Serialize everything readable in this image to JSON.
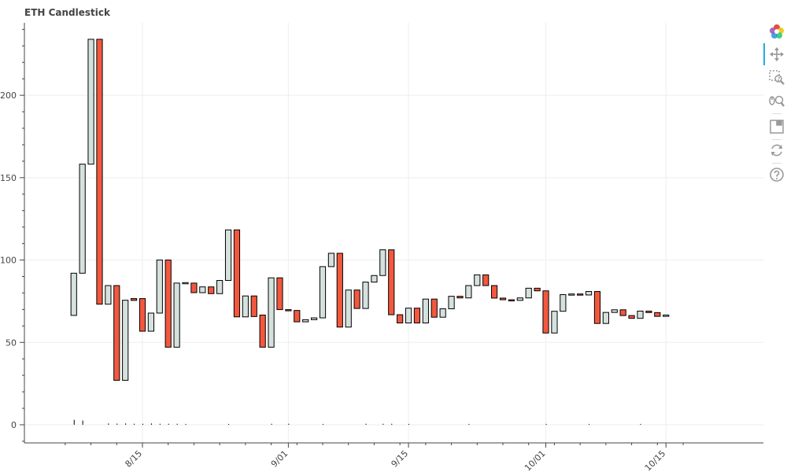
{
  "chart_title": "ETH Candlestick",
  "toolbar": {
    "tools": [
      "bokeh-logo-icon",
      "pan-icon",
      "box-zoom-icon",
      "wheel-zoom-icon",
      "save-icon",
      "reset-icon",
      "help-icon"
    ]
  },
  "colors": {
    "up": "#D5E1DD",
    "down": "#F2583E",
    "outline": "#000000",
    "grid": "#eeeeee"
  },
  "chart_data": {
    "type": "candlestick",
    "title": "ETH Candlestick",
    "x_ticks": [
      "8/15",
      "9/01",
      "9/15",
      "10/01",
      "10/15"
    ],
    "y_ticks": [
      0,
      50,
      100,
      150,
      200
    ],
    "ylim": [
      -11,
      244
    ],
    "grid": true,
    "candles": [
      {
        "date": "2015-08-07",
        "open": 66.4,
        "close": 92.0,
        "dir": "up"
      },
      {
        "date": "2015-08-08",
        "open": 92.0,
        "close": 158.2,
        "dir": "up"
      },
      {
        "date": "2015-08-09",
        "open": 158.2,
        "close": 234.0,
        "dir": "up"
      },
      {
        "date": "2015-08-10",
        "open": 234.0,
        "close": 73.2,
        "dir": "down"
      },
      {
        "date": "2015-08-11",
        "open": 73.2,
        "close": 84.5,
        "dir": "up"
      },
      {
        "date": "2015-08-12",
        "open": 84.5,
        "close": 27.0,
        "dir": "down"
      },
      {
        "date": "2015-08-13",
        "open": 27.0,
        "close": 75.6,
        "dir": "up"
      },
      {
        "date": "2015-08-14",
        "open": 76.6,
        "close": 75.5,
        "dir": "down"
      },
      {
        "date": "2015-08-15",
        "open": 76.6,
        "close": 56.8,
        "dir": "down"
      },
      {
        "date": "2015-08-16",
        "open": 56.8,
        "close": 67.8,
        "dir": "up"
      },
      {
        "date": "2015-08-17",
        "open": 67.8,
        "close": 100.0,
        "dir": "up"
      },
      {
        "date": "2015-08-18",
        "open": 100.0,
        "close": 47.1,
        "dir": "down"
      },
      {
        "date": "2015-08-19",
        "open": 47.1,
        "close": 86.0,
        "dir": "up"
      },
      {
        "date": "2015-08-20",
        "open": 86.0,
        "close": 86.3,
        "dir": "up"
      },
      {
        "date": "2015-08-21",
        "open": 86.0,
        "close": 80.2,
        "dir": "down"
      },
      {
        "date": "2015-08-22",
        "open": 80.2,
        "close": 83.7,
        "dir": "up"
      },
      {
        "date": "2015-08-23",
        "open": 83.7,
        "close": 79.6,
        "dir": "down"
      },
      {
        "date": "2015-08-24",
        "open": 79.6,
        "close": 87.6,
        "dir": "up"
      },
      {
        "date": "2015-08-25",
        "open": 87.6,
        "close": 118.3,
        "dir": "up"
      },
      {
        "date": "2015-08-26",
        "open": 118.3,
        "close": 65.5,
        "dir": "down"
      },
      {
        "date": "2015-08-27",
        "open": 65.5,
        "close": 78.2,
        "dir": "up"
      },
      {
        "date": "2015-08-28",
        "open": 78.2,
        "close": 65.7,
        "dir": "down"
      },
      {
        "date": "2015-08-29",
        "open": 66.6,
        "close": 47.1,
        "dir": "down"
      },
      {
        "date": "2015-08-30",
        "open": 47.1,
        "close": 89.2,
        "dir": "up"
      },
      {
        "date": "2015-08-31",
        "open": 89.2,
        "close": 69.9,
        "dir": "down"
      },
      {
        "date": "2015-09-01",
        "open": 69.9,
        "close": 69.4,
        "dir": "down"
      },
      {
        "date": "2015-09-02",
        "open": 69.4,
        "close": 62.5,
        "dir": "down"
      },
      {
        "date": "2015-09-03",
        "open": 62.5,
        "close": 63.8,
        "dir": "up"
      },
      {
        "date": "2015-09-04",
        "open": 63.8,
        "close": 64.9,
        "dir": "up"
      },
      {
        "date": "2015-09-05",
        "open": 64.9,
        "close": 96.0,
        "dir": "up"
      },
      {
        "date": "2015-09-06",
        "open": 96.0,
        "close": 104.1,
        "dir": "up"
      },
      {
        "date": "2015-09-07",
        "open": 104.1,
        "close": 59.3,
        "dir": "down"
      },
      {
        "date": "2015-09-08",
        "open": 59.3,
        "close": 81.8,
        "dir": "up"
      },
      {
        "date": "2015-09-09",
        "open": 81.8,
        "close": 70.6,
        "dir": "down"
      },
      {
        "date": "2015-09-10",
        "open": 70.6,
        "close": 86.6,
        "dir": "up"
      },
      {
        "date": "2015-09-11",
        "open": 86.6,
        "close": 90.6,
        "dir": "up"
      },
      {
        "date": "2015-09-12",
        "open": 90.6,
        "close": 106.2,
        "dir": "up"
      },
      {
        "date": "2015-09-13",
        "open": 106.2,
        "close": 66.8,
        "dir": "down"
      },
      {
        "date": "2015-09-14",
        "open": 66.8,
        "close": 61.8,
        "dir": "down"
      },
      {
        "date": "2015-09-15",
        "open": 61.8,
        "close": 70.8,
        "dir": "up"
      },
      {
        "date": "2015-09-16",
        "open": 70.8,
        "close": 61.8,
        "dir": "down"
      },
      {
        "date": "2015-09-17",
        "open": 61.8,
        "close": 76.3,
        "dir": "up"
      },
      {
        "date": "2015-09-18",
        "open": 76.3,
        "close": 65.3,
        "dir": "down"
      },
      {
        "date": "2015-09-19",
        "open": 65.3,
        "close": 70.4,
        "dir": "up"
      },
      {
        "date": "2015-09-20",
        "open": 70.4,
        "close": 78.0,
        "dir": "up"
      },
      {
        "date": "2015-09-21",
        "open": 78.0,
        "close": 77.0,
        "dir": "down"
      },
      {
        "date": "2015-09-22",
        "open": 77.0,
        "close": 84.5,
        "dir": "up"
      },
      {
        "date": "2015-09-23",
        "open": 84.5,
        "close": 91.0,
        "dir": "up"
      },
      {
        "date": "2015-09-24",
        "open": 91.0,
        "close": 84.5,
        "dir": "down"
      },
      {
        "date": "2015-09-25",
        "open": 84.5,
        "close": 76.9,
        "dir": "down"
      },
      {
        "date": "2015-09-26",
        "open": 76.9,
        "close": 75.9,
        "dir": "down"
      },
      {
        "date": "2015-09-27",
        "open": 75.9,
        "close": 75.5,
        "dir": "down"
      },
      {
        "date": "2015-09-28",
        "open": 75.5,
        "close": 77.0,
        "dir": "up"
      },
      {
        "date": "2015-09-29",
        "open": 77.0,
        "close": 82.9,
        "dir": "up"
      },
      {
        "date": "2015-09-30",
        "open": 82.9,
        "close": 81.3,
        "dir": "down"
      },
      {
        "date": "2015-10-01",
        "open": 81.3,
        "close": 55.7,
        "dir": "down"
      },
      {
        "date": "2015-10-02",
        "open": 55.7,
        "close": 68.9,
        "dir": "up"
      },
      {
        "date": "2015-10-03",
        "open": 68.9,
        "close": 79.0,
        "dir": "up"
      },
      {
        "date": "2015-10-04",
        "open": 79.0,
        "close": 79.4,
        "dir": "up"
      },
      {
        "date": "2015-10-05",
        "open": 79.4,
        "close": 78.8,
        "dir": "down"
      },
      {
        "date": "2015-10-06",
        "open": 78.8,
        "close": 80.9,
        "dir": "up"
      },
      {
        "date": "2015-10-07",
        "open": 80.9,
        "close": 61.5,
        "dir": "down"
      },
      {
        "date": "2015-10-08",
        "open": 61.5,
        "close": 68.2,
        "dir": "up"
      },
      {
        "date": "2015-10-09",
        "open": 68.2,
        "close": 69.8,
        "dir": "up"
      },
      {
        "date": "2015-10-10",
        "open": 69.8,
        "close": 66.3,
        "dir": "down"
      },
      {
        "date": "2015-10-11",
        "open": 66.3,
        "close": 64.6,
        "dir": "down"
      },
      {
        "date": "2015-10-12",
        "open": 64.6,
        "close": 69.0,
        "dir": "up"
      },
      {
        "date": "2015-10-13",
        "open": 69.0,
        "close": 68.1,
        "dir": "down"
      },
      {
        "date": "2015-10-14",
        "open": 68.1,
        "close": 65.8,
        "dir": "down"
      },
      {
        "date": "2015-10-15",
        "open": 65.8,
        "close": 66.6,
        "dir": "up"
      }
    ],
    "volume_marks": [
      {
        "date": "2015-08-07",
        "value": 3.0
      },
      {
        "date": "2015-08-08",
        "value": 2.6
      },
      {
        "date": "2015-08-11",
        "value": 0.8
      },
      {
        "date": "2015-08-12",
        "value": 0.7
      },
      {
        "date": "2015-08-13",
        "value": 0.8
      },
      {
        "date": "2015-08-14",
        "value": 0.6
      },
      {
        "date": "2015-08-15",
        "value": 0.6
      },
      {
        "date": "2015-08-16",
        "value": 0.8
      },
      {
        "date": "2015-08-17",
        "value": 0.6
      },
      {
        "date": "2015-08-18",
        "value": 0.6
      },
      {
        "date": "2015-08-19",
        "value": 0.6
      },
      {
        "date": "2015-08-20",
        "value": 0.5
      },
      {
        "date": "2015-08-25",
        "value": 0.5
      },
      {
        "date": "2015-08-30",
        "value": 0.6
      },
      {
        "date": "2015-09-01",
        "value": 0.6
      },
      {
        "date": "2015-09-05",
        "value": 0.5
      },
      {
        "date": "2015-09-10",
        "value": 0.6
      },
      {
        "date": "2015-09-12",
        "value": 0.6
      },
      {
        "date": "2015-09-13",
        "value": 0.6
      },
      {
        "date": "2015-09-15",
        "value": 0.5
      },
      {
        "date": "2015-09-22",
        "value": 0.5
      },
      {
        "date": "2015-10-01",
        "value": 0.5
      },
      {
        "date": "2015-10-06",
        "value": 0.5
      },
      {
        "date": "2015-10-12",
        "value": 0.5
      }
    ]
  }
}
